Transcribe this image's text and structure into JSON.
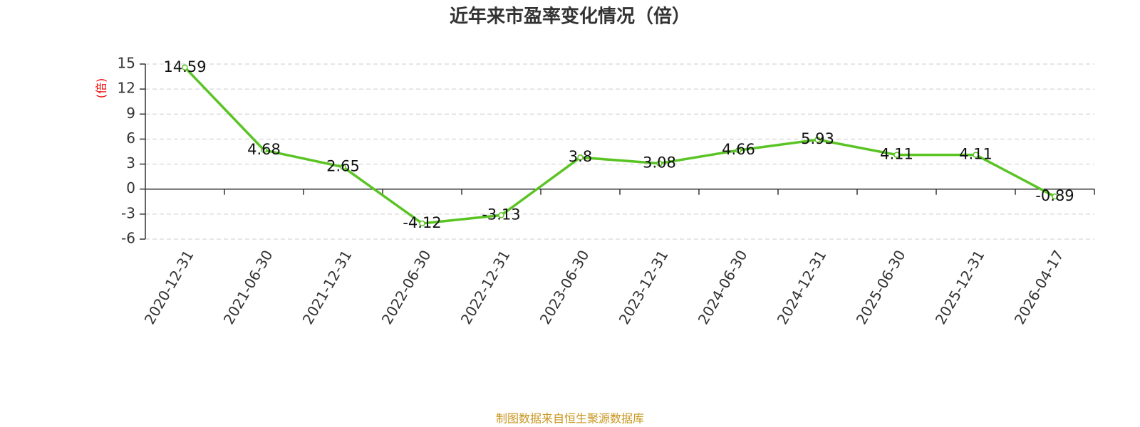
{
  "chart_data": {
    "type": "line",
    "title": "近年来市盈率变化情况（倍）",
    "y_label": "(倍)",
    "source": "制图数据来自恒生聚源数据库",
    "categories": [
      "2020-12-31",
      "2021-06-30",
      "2021-12-31",
      "2022-06-30",
      "2022-12-31",
      "2023-06-30",
      "2023-12-31",
      "2024-06-30",
      "2024-12-31",
      "2025-06-30",
      "2025-12-31",
      "2026-04-17"
    ],
    "values": [
      14.59,
      4.68,
      2.65,
      -4.12,
      -3.13,
      3.8,
      3.08,
      4.66,
      5.93,
      4.11,
      4.11,
      -0.89
    ],
    "color": "#5bc425",
    "ylim": [
      -6,
      15
    ],
    "yticks": [
      -6,
      -3,
      0,
      3,
      6,
      9,
      12,
      15
    ],
    "grid": true
  }
}
